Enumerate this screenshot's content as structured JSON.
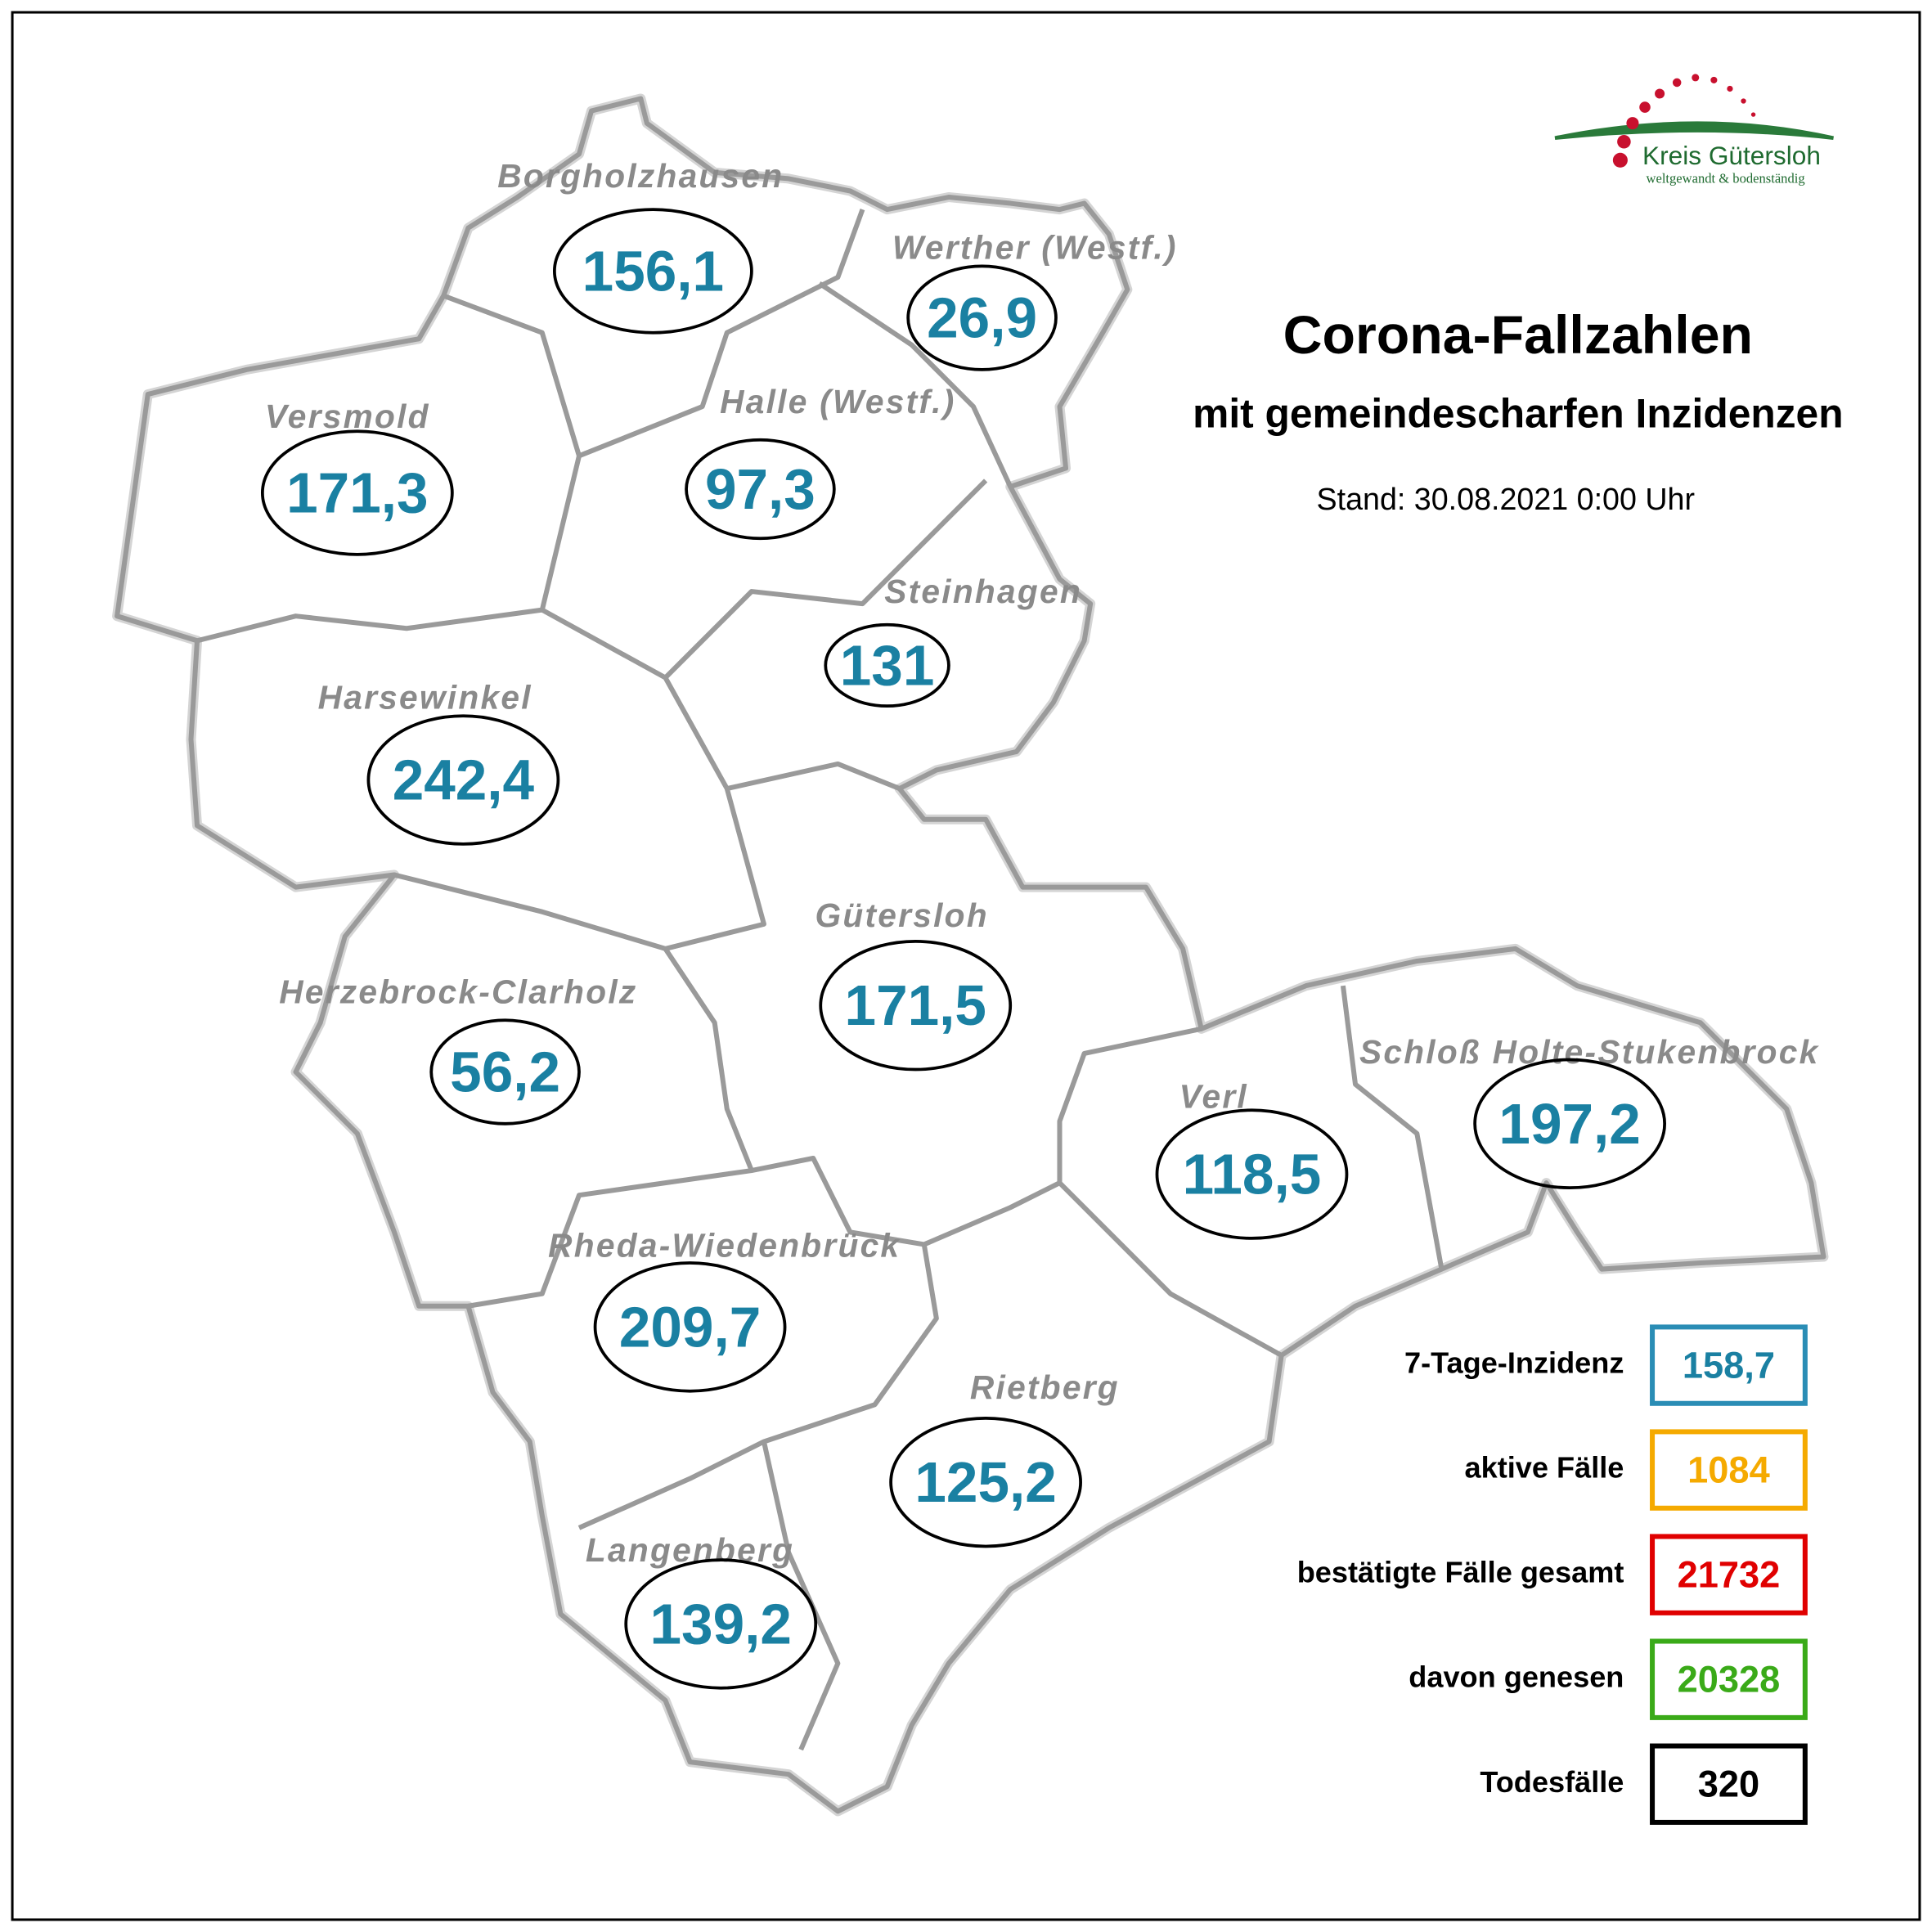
{
  "header": {
    "title": "Corona-Fallzahlen",
    "subtitle": "mit gemeindescharfen Inzidenzen",
    "stand": "Stand: 30.08.2021 0:00 Uhr"
  },
  "logo": {
    "name": "Kreis Gütersloh",
    "tagline": "weltgewandt & bodenständig"
  },
  "municipalities": [
    {
      "name": "Borgholzhausen",
      "value": "156,1"
    },
    {
      "name": "Werther (Westf.)",
      "value": "26,9"
    },
    {
      "name": "Versmold",
      "value": "171,3"
    },
    {
      "name": "Halle (Westf.)",
      "value": "97,3"
    },
    {
      "name": "Steinhagen",
      "value": 131
    },
    {
      "name": "Harsewinkel",
      "value": "242,4"
    },
    {
      "name": "Gütersloh",
      "value": "171,5"
    },
    {
      "name": "Herzebrock-Clarholz",
      "value": "56,2"
    },
    {
      "name": "Schloß Holte-Stukenbrock",
      "value": "197,2"
    },
    {
      "name": "Verl",
      "value": "118,5"
    },
    {
      "name": "Rheda-Wiedenbrück",
      "value": "209,7"
    },
    {
      "name": "Rietberg",
      "value": "125,2"
    },
    {
      "name": "Langenberg",
      "value": "139,2"
    }
  ],
  "summary": [
    {
      "label": "7-Tage-Inzidenz",
      "value": "158,7"
    },
    {
      "label": "aktive Fälle",
      "value": 1084
    },
    {
      "label": "bestätigte Fälle gesamt",
      "value": 21732
    },
    {
      "label": "davon genesen",
      "value": 20328
    },
    {
      "label": "Todesfälle",
      "value": 320
    }
  ]
}
